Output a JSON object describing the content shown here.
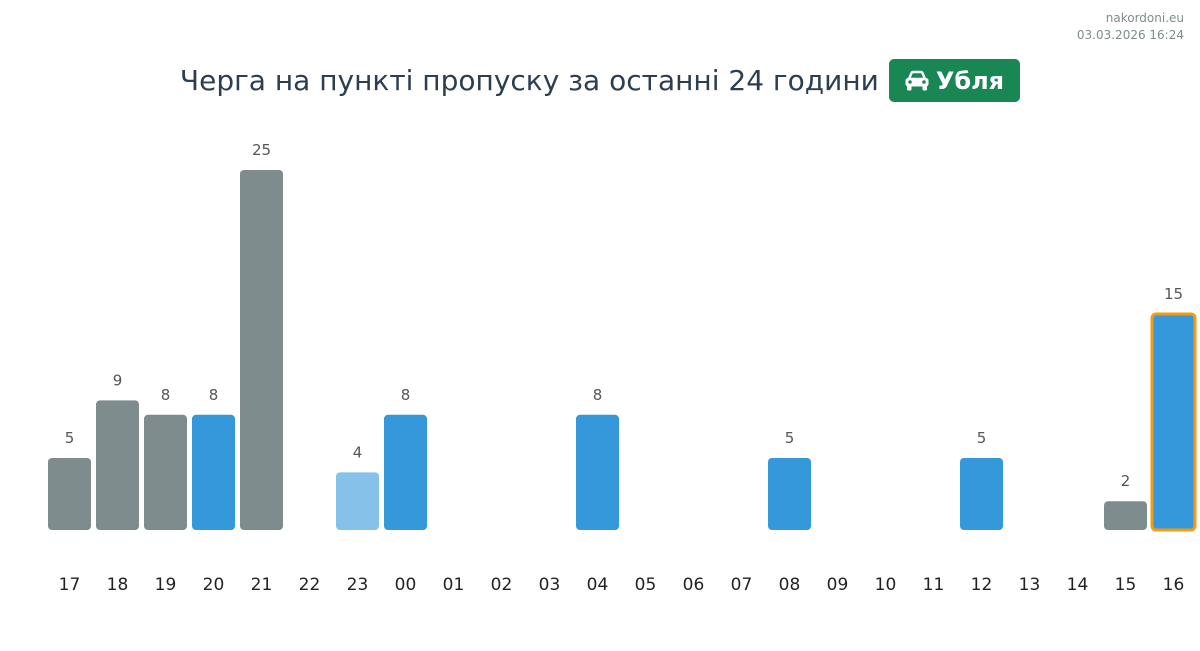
{
  "source": {
    "site": "nakordoni.eu",
    "timestamp": "03.03.2026 16:24"
  },
  "header": {
    "title": "Черга на пункті пропуску за останні 24 години",
    "badge_label": "Убля",
    "badge_icon": "car-icon"
  },
  "colors": {
    "past": "#7f8c8d",
    "current": "#3498db",
    "light": "#85c1e9",
    "highlight_border": "#f39c12",
    "badge": "#198754"
  },
  "chart_data": {
    "type": "bar",
    "categories": [
      "17",
      "18",
      "19",
      "20",
      "21",
      "22",
      "23",
      "00",
      "01",
      "02",
      "03",
      "04",
      "05",
      "06",
      "07",
      "08",
      "09",
      "10",
      "11",
      "12",
      "13",
      "14",
      "15",
      "16"
    ],
    "values": [
      5,
      9,
      8,
      8,
      25,
      0,
      4,
      8,
      0,
      0,
      0,
      8,
      0,
      0,
      0,
      5,
      0,
      0,
      0,
      5,
      0,
      0,
      2,
      15
    ],
    "bar_color_keys": [
      "past",
      "past",
      "past",
      "current",
      "past",
      "past",
      "light",
      "current",
      "past",
      "past",
      "past",
      "current",
      "past",
      "past",
      "past",
      "current",
      "past",
      "past",
      "past",
      "current",
      "past",
      "past",
      "past",
      "current"
    ],
    "highlight_category": "16",
    "title": "",
    "xlabel": "",
    "ylabel": "",
    "ylim": [
      0,
      25
    ],
    "grid": false,
    "legend": "none"
  }
}
